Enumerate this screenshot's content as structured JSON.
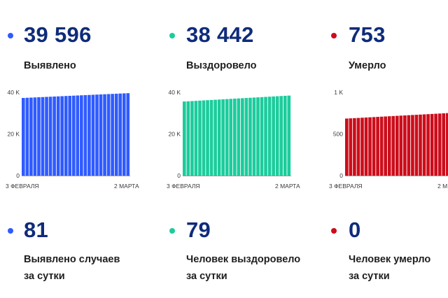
{
  "colors": {
    "blue": "#2f5bff",
    "green": "#1ccc9c",
    "red": "#cc0d1b",
    "number": "#0f2c7a"
  },
  "totals": [
    {
      "value": "39 596",
      "label": "Выявлено",
      "color": "#2f5bff"
    },
    {
      "value": "38 442",
      "label": "Выздоровело",
      "color": "#1ccc9c"
    },
    {
      "value": "753",
      "label": "Умерло",
      "color": "#cc0d1b"
    }
  ],
  "daily": [
    {
      "value": "81",
      "line1": "Выявлено случаев",
      "line2": "за сутки",
      "color": "#2f5bff"
    },
    {
      "value": "79",
      "line1": "Человек выздоровело",
      "line2": "за сутки",
      "color": "#1ccc9c"
    },
    {
      "value": "0",
      "line1": "Человек умерло",
      "line2": "за сутки",
      "color": "#cc0d1b"
    }
  ],
  "chart_data": [
    {
      "type": "bar",
      "title": "",
      "x_start": "3 ФЕВРАЛЯ",
      "x_end": "2 МАРТА",
      "ylim": [
        0,
        40000
      ],
      "y_ticks": [
        {
          "v": 0,
          "t": "0"
        },
        {
          "v": 20000,
          "t": "20 K"
        },
        {
          "v": 40000,
          "t": "40 K"
        }
      ],
      "series": [
        {
          "color": "#2f5bff",
          "start": 37300,
          "end": 39596,
          "count": 28
        }
      ]
    },
    {
      "type": "bar",
      "title": "",
      "x_start": "3 ФЕВРАЛЯ",
      "x_end": "2 МАРТА",
      "ylim": [
        0,
        40000
      ],
      "y_ticks": [
        {
          "v": 0,
          "t": "0"
        },
        {
          "v": 20000,
          "t": "20 K"
        },
        {
          "v": 40000,
          "t": "40 K"
        }
      ],
      "series": [
        {
          "color": "#1ccc9c",
          "start": 35600,
          "end": 38442,
          "count": 28
        }
      ]
    },
    {
      "type": "bar",
      "title": "",
      "x_start": "3 ФЕВРАЛЯ",
      "x_end": "2 М",
      "ylim": [
        0,
        1000
      ],
      "y_ticks": [
        {
          "v": 0,
          "t": "0"
        },
        {
          "v": 500,
          "t": "500"
        },
        {
          "v": 1000,
          "t": "1 K"
        }
      ],
      "series": [
        {
          "color": "#cc0d1b",
          "start": 685,
          "end": 753,
          "count": 28
        }
      ]
    }
  ]
}
